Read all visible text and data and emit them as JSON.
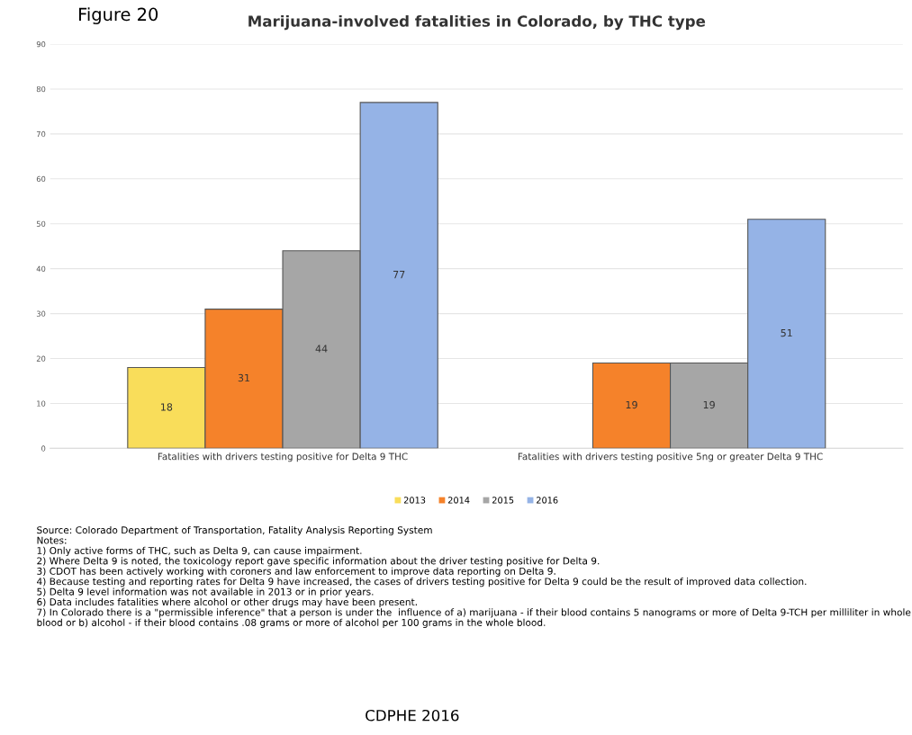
{
  "chart_data": {
    "type": "bar",
    "title": "Marijuana-involved fatalities in Colorado, by THC type",
    "categories": [
      "Fatalities with drivers testing positive for Delta 9 THC",
      "Fatalities with drivers testing positive 5ng or greater Delta 9 THC"
    ],
    "series": [
      {
        "name": "2013",
        "color": "#f9dd5a",
        "values": [
          18,
          null
        ]
      },
      {
        "name": "2014",
        "color": "#f5822a",
        "values": [
          31,
          19
        ]
      },
      {
        "name": "2015",
        "color": "#a6a6a6",
        "values": [
          44,
          19
        ]
      },
      {
        "name": "2016",
        "color": "#95b3e6",
        "values": [
          77,
          51
        ]
      }
    ],
    "ylim": [
      0,
      90
    ],
    "yticks": [
      0,
      10,
      20,
      30,
      40,
      50,
      60,
      70,
      80,
      90
    ],
    "grid": "y",
    "legend": "bottom",
    "data_labels": true,
    "annotations": [
      "Figure 20",
      "Source: Colorado Department of Transportation, Fatality Analysis Reporting System",
      "Notes:",
      "1) Only active forms of THC, such as Delta 9, can cause impairment.",
      "2) Where Delta 9 is noted, the toxicology report gave specific information about the driver testing positive for Delta 9.",
      "3) CDOT has been actively working with coroners and law enforcement to improve data reporting on Delta 9.",
      "4) Because testing and reporting rates for Delta 9 have increased, the cases of drivers testing positive for Delta 9 could be the result of improved data collection.",
      "5) Delta 9 level information was not available in 2013 or in prior years.",
      "6) Data includes fatalities where alcohol or other drugs may have been present.",
      "7) In Colorado there is a \"permissible inference\" that a person is under the  influence of a) marijuana - if their blood contains 5 nanograms or more of Delta 9-TCH per milliliter in whole blood or b) alcohol - if their blood contains .08 grams or more of alcohol per 100 grams in the whole blood.",
      "CDPHE 2016"
    ]
  }
}
